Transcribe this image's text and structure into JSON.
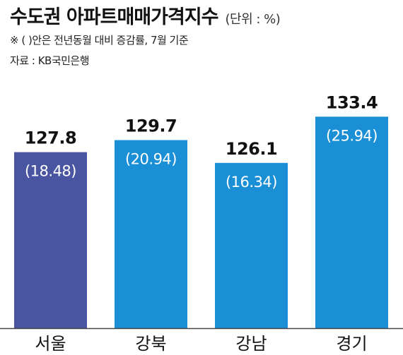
{
  "header": {
    "title": "수도권 아파트매매가격지수",
    "unit": "(단위 : %)",
    "note": "※ ( )안은 전년동월 대비 증감률, 7월 기준",
    "source": "자료 : KB국민은행"
  },
  "chart_data": {
    "type": "bar",
    "title": "수도권 아파트매매가격지수",
    "categories": [
      "서울",
      "강북",
      "강남",
      "경기"
    ],
    "series": [
      {
        "values": [
          127.8,
          129.7,
          126.1,
          133.4
        ]
      },
      {
        "values": [
          18.48,
          20.94,
          16.34,
          25.94
        ]
      }
    ],
    "value_labels": [
      "127.8",
      "129.7",
      "126.1",
      "133.4"
    ],
    "change_labels": [
      "(18.48)",
      "(20.94)",
      "(16.34)",
      "(25.94)"
    ],
    "colors": [
      "#4a55a2",
      "#1b8fd6",
      "#1b8fd6",
      "#1b8fd6"
    ],
    "baseline_color": "#444444",
    "ylim": [
      100,
      136
    ],
    "grid": false,
    "legend": "none"
  }
}
